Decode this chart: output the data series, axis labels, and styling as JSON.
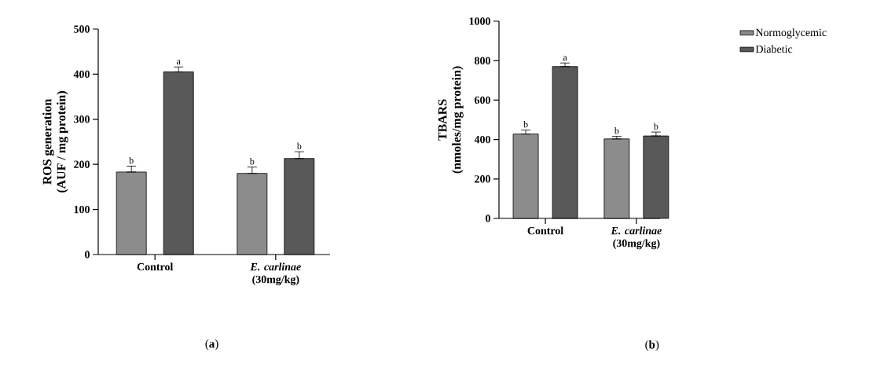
{
  "chart_data": [
    {
      "type": "bar",
      "ylabel": "ROS generation\n(AUF / mg protein)",
      "categories": [
        "Control",
        "*E. carlinae* (30mg/kg)"
      ],
      "series": [
        {
          "color": "#8c8c8c",
          "values": [
            183,
            180
          ],
          "errors": [
            [
              183,
              196
            ],
            [
              180,
              194
            ]
          ]
        },
        {
          "color": "#595959",
          "values": [
            405,
            213
          ],
          "errors": [
            [
              405,
              416
            ],
            [
              213,
              228
            ]
          ]
        }
      ],
      "ylim": [
        0,
        500
      ],
      "yticks": [
        0,
        100,
        200,
        300,
        400,
        500
      ],
      "grid": false,
      "legend": false,
      "annotations": [
        "b",
        "a",
        "b",
        "b",
        "(**a**)"
      ]
    },
    {
      "type": "bar",
      "ylabel": "TBARS\n(nmoles/mg protein)",
      "categories": [
        "Control",
        "*E. carlinae* (30mg/kg)"
      ],
      "series": [
        {
          "name": "Normoglycemic",
          "color": "#8c8c8c",
          "values": [
            428,
            403
          ],
          "errors": [
            [
              428,
              448
            ],
            [
              403,
              416
            ]
          ]
        },
        {
          "name": "Diabetic",
          "color": "#595959",
          "values": [
            770,
            418
          ],
          "errors": [
            [
              770,
              788
            ],
            [
              418,
              438
            ]
          ]
        }
      ],
      "ylim": [
        0,
        1000
      ],
      "yticks": [
        0,
        200,
        400,
        600,
        800,
        1000
      ],
      "grid": false,
      "legend": "right",
      "annotations": [
        "b",
        "a",
        "b",
        "b",
        "(**b**)"
      ]
    }
  ]
}
